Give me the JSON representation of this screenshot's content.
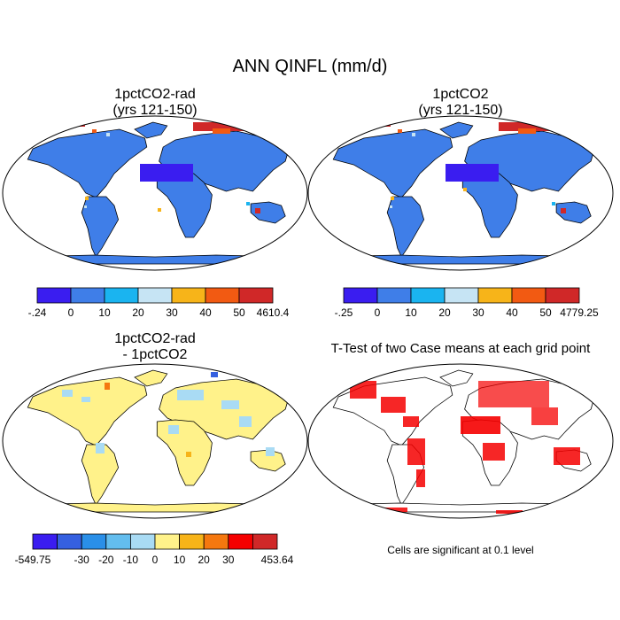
{
  "title": "ANN QINFL (mm/d)",
  "panels": [
    {
      "title_line1": "1pctCO2-rad",
      "title_line2": "(yrs 121-150)"
    },
    {
      "title_line1": "1pctCO2",
      "title_line2": "(yrs 121-150)"
    },
    {
      "title_line1": "1pctCO2-rad",
      "title_line2": "- 1pctCO2"
    },
    {
      "title_line1": "T-Test of two Case means at each grid point",
      "title_line2": ""
    }
  ],
  "colorbars": [
    {
      "labels": [
        "-.24",
        "0",
        "10",
        "20",
        "30",
        "40",
        "50",
        "4610.4"
      ],
      "colors": [
        "#3a1df0",
        "#3f7ee8",
        "#1ab4f0",
        "#c6e4f4",
        "#f7b419",
        "#f25a12",
        "#d02828"
      ]
    },
    {
      "labels": [
        "-.25",
        "0",
        "10",
        "20",
        "30",
        "40",
        "50",
        "4779.25"
      ],
      "colors": [
        "#3a1df0",
        "#3f7ee8",
        "#1ab4f0",
        "#c6e4f4",
        "#f7b419",
        "#f25a12",
        "#d02828"
      ]
    },
    {
      "labels": [
        "-549.75",
        "-30",
        "-20",
        "-10",
        "0",
        "10",
        "20",
        "30",
        "453.64"
      ],
      "colors": [
        "#3a1df0",
        "#3560e0",
        "#2a8fe8",
        "#63bdee",
        "#a9dbf4",
        "#fff28a",
        "#f7b419",
        "#f5780f",
        "#f50000",
        "#d02828"
      ]
    }
  ],
  "footnote": "Cells are significant at 0.1 level"
}
